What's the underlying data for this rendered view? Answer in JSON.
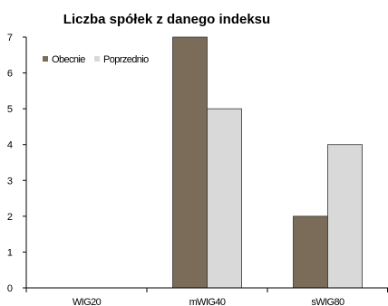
{
  "chart_data": {
    "type": "bar",
    "title": "Liczba spółek z danego indeksu",
    "categories": [
      "WIG20",
      "mWIG40",
      "sWIG80"
    ],
    "series": [
      {
        "name": "Obecnie",
        "values": [
          0,
          7,
          2
        ],
        "color": "#7a6c58"
      },
      {
        "name": "Poprzednio",
        "values": [
          0,
          5,
          4
        ],
        "color": "#d9d9d9"
      }
    ],
    "ylim": [
      0,
      7
    ],
    "yticks": [
      0,
      1,
      2,
      3,
      4,
      5,
      6,
      7
    ],
    "grid": false,
    "legend_position": "top-left"
  }
}
